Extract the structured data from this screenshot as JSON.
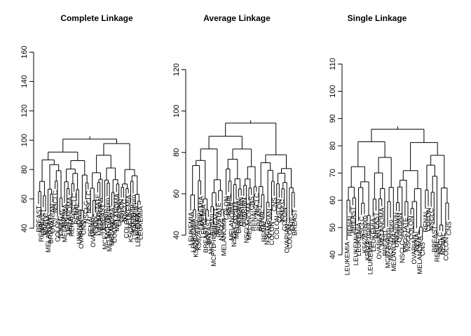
{
  "chart_data": [
    {
      "type": "dendrogram",
      "title": "Complete Linkage",
      "ylim": [
        40,
        165
      ],
      "yticks": [
        40,
        60,
        80,
        100,
        120,
        140,
        160
      ],
      "leaves": [
        "BREAST",
        "RENAL",
        "BREAST",
        "NSCLC",
        "MELANOMA",
        "BREAST",
        "OVARIAN",
        "NSCLC",
        "COLON",
        "NSCLC",
        "RENAL",
        "MELANOMA",
        "CNS",
        "MELANOMA",
        "RENAL",
        "NSCLC",
        "RENAL",
        "UNKNOWN",
        "OVARIAN",
        "CNS",
        "NSCLC",
        "NSCLC",
        "RENAL",
        "OVARIAN",
        "NSCLC",
        "PROSTATE",
        "MELANOMA",
        "BREAST",
        "MCF7A-repro",
        "MCF7D-repro",
        "MELANOMA",
        "MELANOMA",
        "COLON",
        "MELANOMA",
        "COLON",
        "COLON",
        "NSCLC",
        "COLON",
        "LEUKEMIA",
        "K562A-repro",
        "K562B-repro",
        "LEUKEMIA",
        "LEUKEMIA",
        "LEUKEMIA"
      ]
    },
    {
      "type": "dendrogram",
      "title": "Average Linkage",
      "ylim": [
        40,
        130
      ],
      "yticks": [
        40,
        60,
        80,
        100,
        120
      ],
      "leaves": [
        "LEUKEMIA",
        "LEUKEMIA",
        "K562B-repro",
        "K562A-repro",
        "LEUKEMIA",
        "LEUKEMIA",
        "BREAST",
        "BREAST",
        "MCF7A-repro",
        "MCF7D-repro",
        "BREAST",
        "PROSTATE",
        "NSCLC",
        "MELANOMA",
        "COLON",
        "RENAL",
        "MELANOMA",
        "NSCLC",
        "MELANOMA",
        "UNKNOWN",
        "OVARIAN",
        "OVARIAN",
        "NSCLC",
        "MELANOMA",
        "CNS",
        "RENAL",
        "NSCLC",
        "BREAST",
        "RENAL",
        "RENAL",
        "NSCLC",
        "OVARIAN",
        "COLON",
        "CNS",
        "COLON",
        "COLON",
        "NSCLC",
        "COLON",
        "OVARIAN",
        "COLON",
        "CNS",
        "BREAST"
      ]
    },
    {
      "type": "dendrogram",
      "title": "Single Linkage",
      "ylim": [
        40,
        115
      ],
      "yticks": [
        40,
        50,
        60,
        70,
        80,
        90,
        100,
        110
      ],
      "leaves": [
        "LEUKEMIA",
        "RENAL",
        "BREAST",
        "LEUKEMIA",
        "LEUKEMIA",
        "NSCLC",
        "K562B-repro",
        "K562A-repro",
        "LEUKEMIA",
        "LEUKEMIA",
        "BREAST",
        "OVARIAN",
        "MELANOMA",
        "BREAST",
        "MCF7A-repro",
        "MCF7D-repro",
        "MELANOMA",
        "UNKNOWN",
        "OVARIAN",
        "NSCLC",
        "PROSTATE",
        "NSCLC",
        "COLON",
        "OVARIAN",
        "RENAL",
        "MELANOMA",
        "CNS",
        "RENAL",
        "COLON",
        "NSCLC",
        "BREAST",
        "RENAL",
        "NSCLC",
        "RENAL",
        "COLON",
        "CNS"
      ]
    }
  ]
}
